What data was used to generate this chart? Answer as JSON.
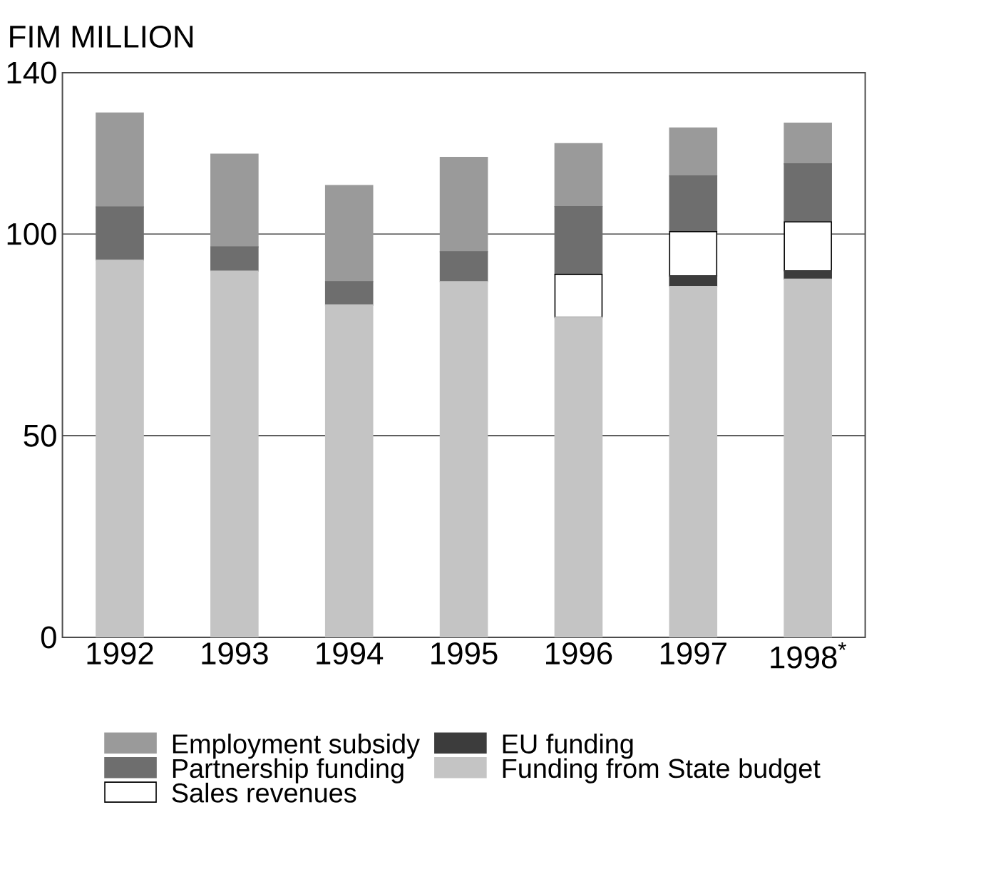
{
  "chart_data": {
    "type": "bar",
    "stacked": true,
    "ylabel": "FIM MILLION",
    "categories": [
      "1992",
      "1993",
      "1994",
      "1995",
      "1996",
      "1997",
      "1998$^{*}$"
    ],
    "series": [
      {
        "name": "Funding from State budget",
        "color": "#c4c4c4",
        "values": [
          93.5,
          90.8,
          82.4,
          88.2,
          79.3,
          87,
          88.8
        ]
      },
      {
        "name": "EU funding",
        "color": "#3c3c3c",
        "values": [
          0,
          0,
          0,
          0,
          0,
          2.6,
          2.1
        ]
      },
      {
        "name": "Sales revenues",
        "color": "#ffffff",
        "values": [
          0,
          0,
          0,
          0,
          10.7,
          11,
          12.1
        ]
      },
      {
        "name": "Partnership funding",
        "color": "#6e6e6e",
        "values": [
          13.2,
          6,
          5.8,
          7.4,
          16.8,
          13.8,
          14.4
        ]
      },
      {
        "name": "Employment subsidy",
        "color": "#9a9a9a",
        "values": [
          23.3,
          23,
          23.8,
          23.4,
          15.6,
          11.9,
          10.1
        ]
      }
    ],
    "ylim": [
      0,
      140
    ],
    "yticks": [
      0,
      50,
      100,
      140
    ],
    "grid": "y",
    "legend": "bottom"
  }
}
